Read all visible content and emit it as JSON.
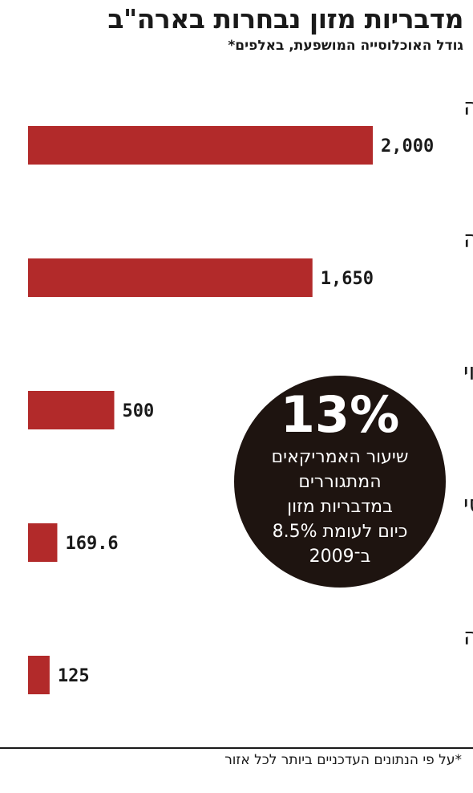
{
  "title": "מדבריות מזון נבחרות בארה\"ב",
  "subtitle": "גודל האוכלוסייה המושפעת, באלפים*",
  "callout": {
    "big": "13%",
    "lines": [
      "שיעור האמריקאים",
      "המתגוררים",
      "במדבריות מזון",
      "כיום לעומת 8.5%",
      "ב־2009"
    ]
  },
  "footnote": "*על פי הנתונים העדכניים ביותר לכל אזור",
  "colors": {
    "bar": "#b22a2a",
    "circle": "#1e1410"
  },
  "chart_data": {
    "type": "bar",
    "orientation": "horizontal",
    "categories": [
      "אטלנטה, ג'ורג'יה",
      "מינסוטה",
      "שיקגו, אילינוי",
      "ממפיס, טנסי",
      "סן פרנסיסקו, קליפורניה"
    ],
    "values": [
      2000,
      1650,
      500,
      169.6,
      125
    ],
    "value_labels": [
      "2,000",
      "1,650",
      "500",
      "169.6",
      "125"
    ],
    "title": "מדבריות מזון נבחרות בארה\"ב",
    "subtitle": "גודל האוכלוסייה המושפעת, באלפים*",
    "xlim": [
      0,
      2000
    ],
    "grid": false,
    "legend": "none"
  }
}
